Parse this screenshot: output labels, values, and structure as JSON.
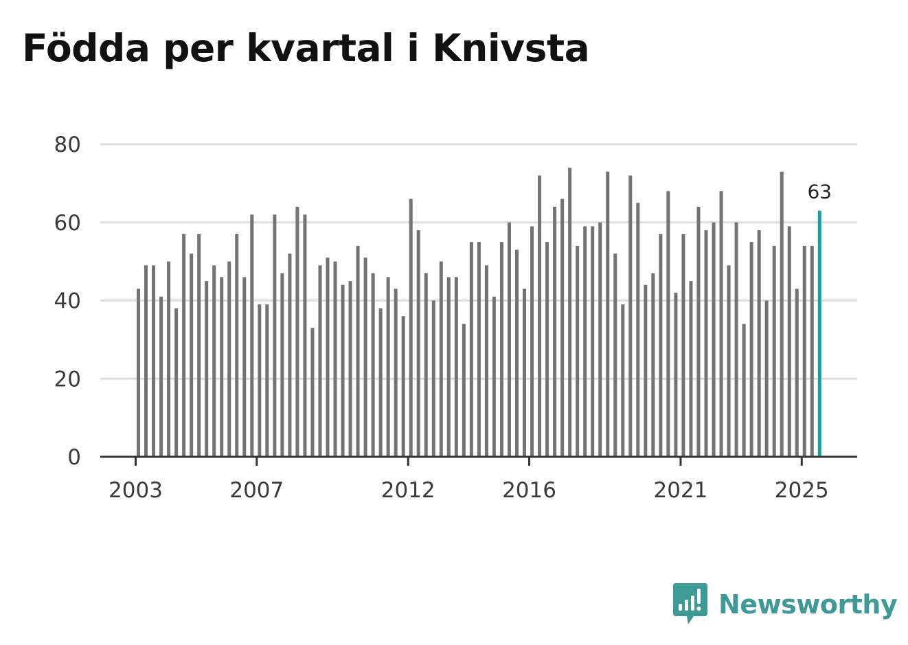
{
  "title": "Födda per kvartal i Knivsta",
  "brand": {
    "name": "Newsworthy",
    "logo_icon": "bar-chart-speech-bubble-icon",
    "color": "#3d9a96"
  },
  "colors": {
    "bar": "#737376",
    "highlight": "#1a9e9a",
    "grid": "#dddddd",
    "axis": "#333333"
  },
  "chart_data": {
    "type": "bar",
    "title": "Födda per kvartal i Knivsta",
    "xlabel": "",
    "ylabel": "",
    "ylim": [
      0,
      80
    ],
    "yticks": [
      0,
      20,
      40,
      60,
      80
    ],
    "grid": true,
    "xtick_labels": [
      "2003",
      "2007",
      "2012",
      "2016",
      "2021",
      "2025"
    ],
    "start_year": 2003,
    "start_quarter": 1,
    "values": [
      43,
      49,
      49,
      41,
      50,
      38,
      57,
      52,
      57,
      45,
      49,
      46,
      50,
      57,
      46,
      62,
      39,
      39,
      62,
      47,
      52,
      64,
      62,
      33,
      49,
      51,
      50,
      44,
      45,
      54,
      51,
      47,
      38,
      46,
      43,
      36,
      66,
      58,
      47,
      40,
      50,
      46,
      46,
      34,
      55,
      55,
      49,
      41,
      55,
      60,
      53,
      43,
      59,
      72,
      55,
      64,
      66,
      74,
      54,
      59,
      59,
      60,
      73,
      52,
      39,
      72,
      65,
      44,
      47,
      57,
      68,
      42,
      57,
      45,
      64,
      58,
      60,
      68,
      49,
      60,
      34,
      55,
      58,
      40,
      54,
      73,
      59,
      43,
      54,
      54,
      63
    ],
    "highlight_last": true,
    "annotation": {
      "label": "63",
      "value": 63
    }
  }
}
